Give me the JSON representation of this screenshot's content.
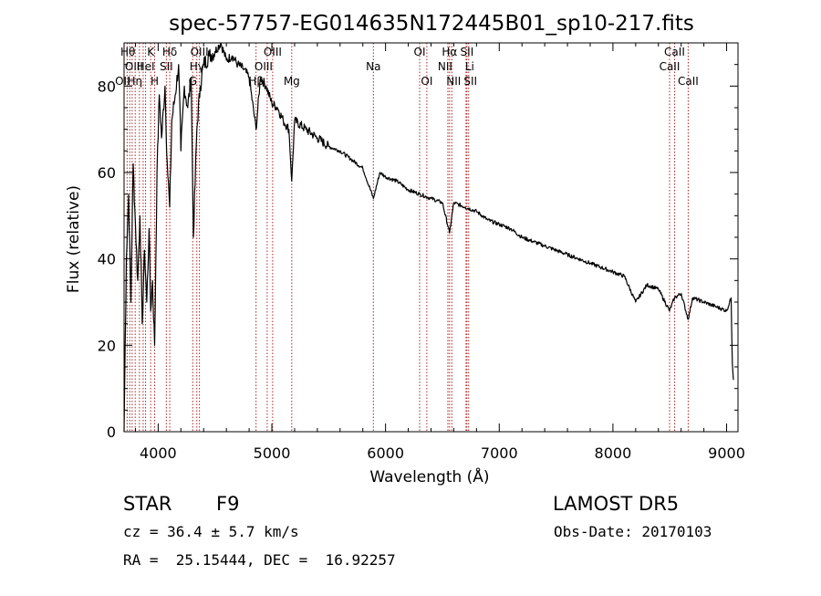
{
  "chart_data": {
    "type": "line",
    "title": "spec-57757-EG014635N172445B01_sp10-217.fits",
    "xlabel": "Wavelength (Å)",
    "ylabel": "Flux (relative)",
    "xlim": [
      3700,
      9100
    ],
    "ylim": [
      0,
      90
    ],
    "x_ticks": [
      4000,
      5000,
      6000,
      7000,
      8000,
      9000
    ],
    "y_ticks": [
      0,
      20,
      40,
      60,
      80
    ],
    "grid": false,
    "series": [
      {
        "color": "#000000",
        "x": [
          3700,
          3720,
          3740,
          3760,
          3780,
          3800,
          3820,
          3840,
          3860,
          3880,
          3900,
          3920,
          3934,
          3950,
          3969,
          3990,
          4010,
          4030,
          4060,
          4080,
          4101,
          4120,
          4150,
          4180,
          4200,
          4230,
          4260,
          4290,
          4310,
          4340,
          4370,
          4400,
          4450,
          4500,
          4550,
          4600,
          4650,
          4700,
          4750,
          4800,
          4861,
          4900,
          4950,
          5000,
          5050,
          5100,
          5150,
          5175,
          5200,
          5300,
          5400,
          5500,
          5600,
          5700,
          5800,
          5893,
          5950,
          6000,
          6100,
          6200,
          6300,
          6400,
          6500,
          6563,
          6600,
          6700,
          6800,
          6900,
          7000,
          7100,
          7200,
          7300,
          7400,
          7500,
          7600,
          7700,
          7800,
          7900,
          8000,
          8100,
          8200,
          8300,
          8400,
          8498,
          8542,
          8600,
          8662,
          8700,
          8800,
          8900,
          9000,
          9040,
          9050,
          9060
        ],
        "y": [
          0,
          40,
          55,
          30,
          62,
          48,
          35,
          50,
          25,
          42,
          30,
          47,
          28,
          35,
          20,
          60,
          78,
          68,
          80,
          62,
          52,
          72,
          78,
          85,
          65,
          80,
          75,
          82,
          45,
          70,
          80,
          85,
          87,
          88,
          90,
          86,
          87,
          85,
          84,
          82,
          70,
          82,
          80,
          76,
          75,
          72,
          70,
          58,
          72,
          70,
          68,
          66,
          65,
          63,
          61,
          54,
          60,
          59,
          58,
          56,
          55,
          54,
          53,
          46,
          53,
          52,
          51,
          49,
          48,
          47,
          45,
          44,
          43,
          42,
          41,
          40,
          39,
          38,
          37,
          36,
          30,
          34,
          33,
          28,
          31,
          32,
          26,
          31,
          30,
          29,
          28,
          31,
          16,
          12
        ]
      }
    ],
    "lines": [
      {
        "wl": 3727,
        "label": "OII",
        "row": 2,
        "dx": -5
      },
      {
        "wl": 3750,
        "label": "Hθ",
        "row": 0,
        "dx": -2
      },
      {
        "wl": 3771,
        "label": "Hη",
        "row": 2,
        "dx": 3
      },
      {
        "wl": 3798,
        "label": "",
        "row": 0,
        "dx": 0
      },
      {
        "wl": 3835,
        "label": "",
        "row": 0,
        "dx": 0
      },
      {
        "wl": 3868,
        "label": "OIII",
        "row": 1,
        "dx": -10
      },
      {
        "wl": 3889,
        "label": "HeI",
        "row": 1,
        "dx": 0
      },
      {
        "wl": 3934,
        "label": "K",
        "row": 0,
        "dx": 0
      },
      {
        "wl": 3969,
        "label": "H",
        "row": 2,
        "dx": 0
      },
      {
        "wl": 4072,
        "label": "SII",
        "row": 1,
        "dx": 0
      },
      {
        "wl": 4102,
        "label": "Hδ",
        "row": 0,
        "dx": 0
      },
      {
        "wl": 4304,
        "label": "G",
        "row": 2,
        "dx": 0
      },
      {
        "wl": 4340,
        "label": "Hγ",
        "row": 1,
        "dx": 0
      },
      {
        "wl": 4363,
        "label": "OIII",
        "row": 0,
        "dx": 0
      },
      {
        "wl": 4861,
        "label": "Hβ",
        "row": 2,
        "dx": 0
      },
      {
        "wl": 4959,
        "label": "OIII",
        "row": 1,
        "dx": -4
      },
      {
        "wl": 5007,
        "label": "OIII",
        "row": 0,
        "dx": 0
      },
      {
        "wl": 5175,
        "label": "Mg",
        "row": 2,
        "dx": 0
      },
      {
        "wl": 5893,
        "label": "Na",
        "row": 1,
        "dx": 0
      },
      {
        "wl": 6300,
        "label": "OI",
        "row": 0,
        "dx": 0
      },
      {
        "wl": 6363,
        "label": "OI",
        "row": 2,
        "dx": 0
      },
      {
        "wl": 6548,
        "label": "NII",
        "row": 1,
        "dx": -3
      },
      {
        "wl": 6563,
        "label": "Hα",
        "row": 0,
        "dx": 0
      },
      {
        "wl": 6583,
        "label": "NII",
        "row": 2,
        "dx": 2
      },
      {
        "wl": 6708,
        "label": "Li",
        "row": 1,
        "dx": 4
      },
      {
        "wl": 6716,
        "label": "SII",
        "row": 0,
        "dx": 0
      },
      {
        "wl": 6731,
        "label": "SII",
        "row": 2,
        "dx": 2
      },
      {
        "wl": 8498,
        "label": "CaII",
        "row": 1,
        "dx": 0
      },
      {
        "wl": 8542,
        "label": "CaII",
        "row": 0,
        "dx": 0
      },
      {
        "wl": 8662,
        "label": "CaII",
        "row": 2,
        "dx": 0
      }
    ]
  },
  "info": {
    "class_label": "STAR",
    "subclass": "F9",
    "survey": "LAMOST DR5",
    "cz": "cz = 36.4 ± 5.7 km/s",
    "obs_date": "Obs-Date: 20170103",
    "radec": "RA =  25.15444, DEC =  16.92257"
  },
  "colors": {
    "spectrum": "#000000",
    "line_markers": "#b22222",
    "axes": "#000000"
  }
}
